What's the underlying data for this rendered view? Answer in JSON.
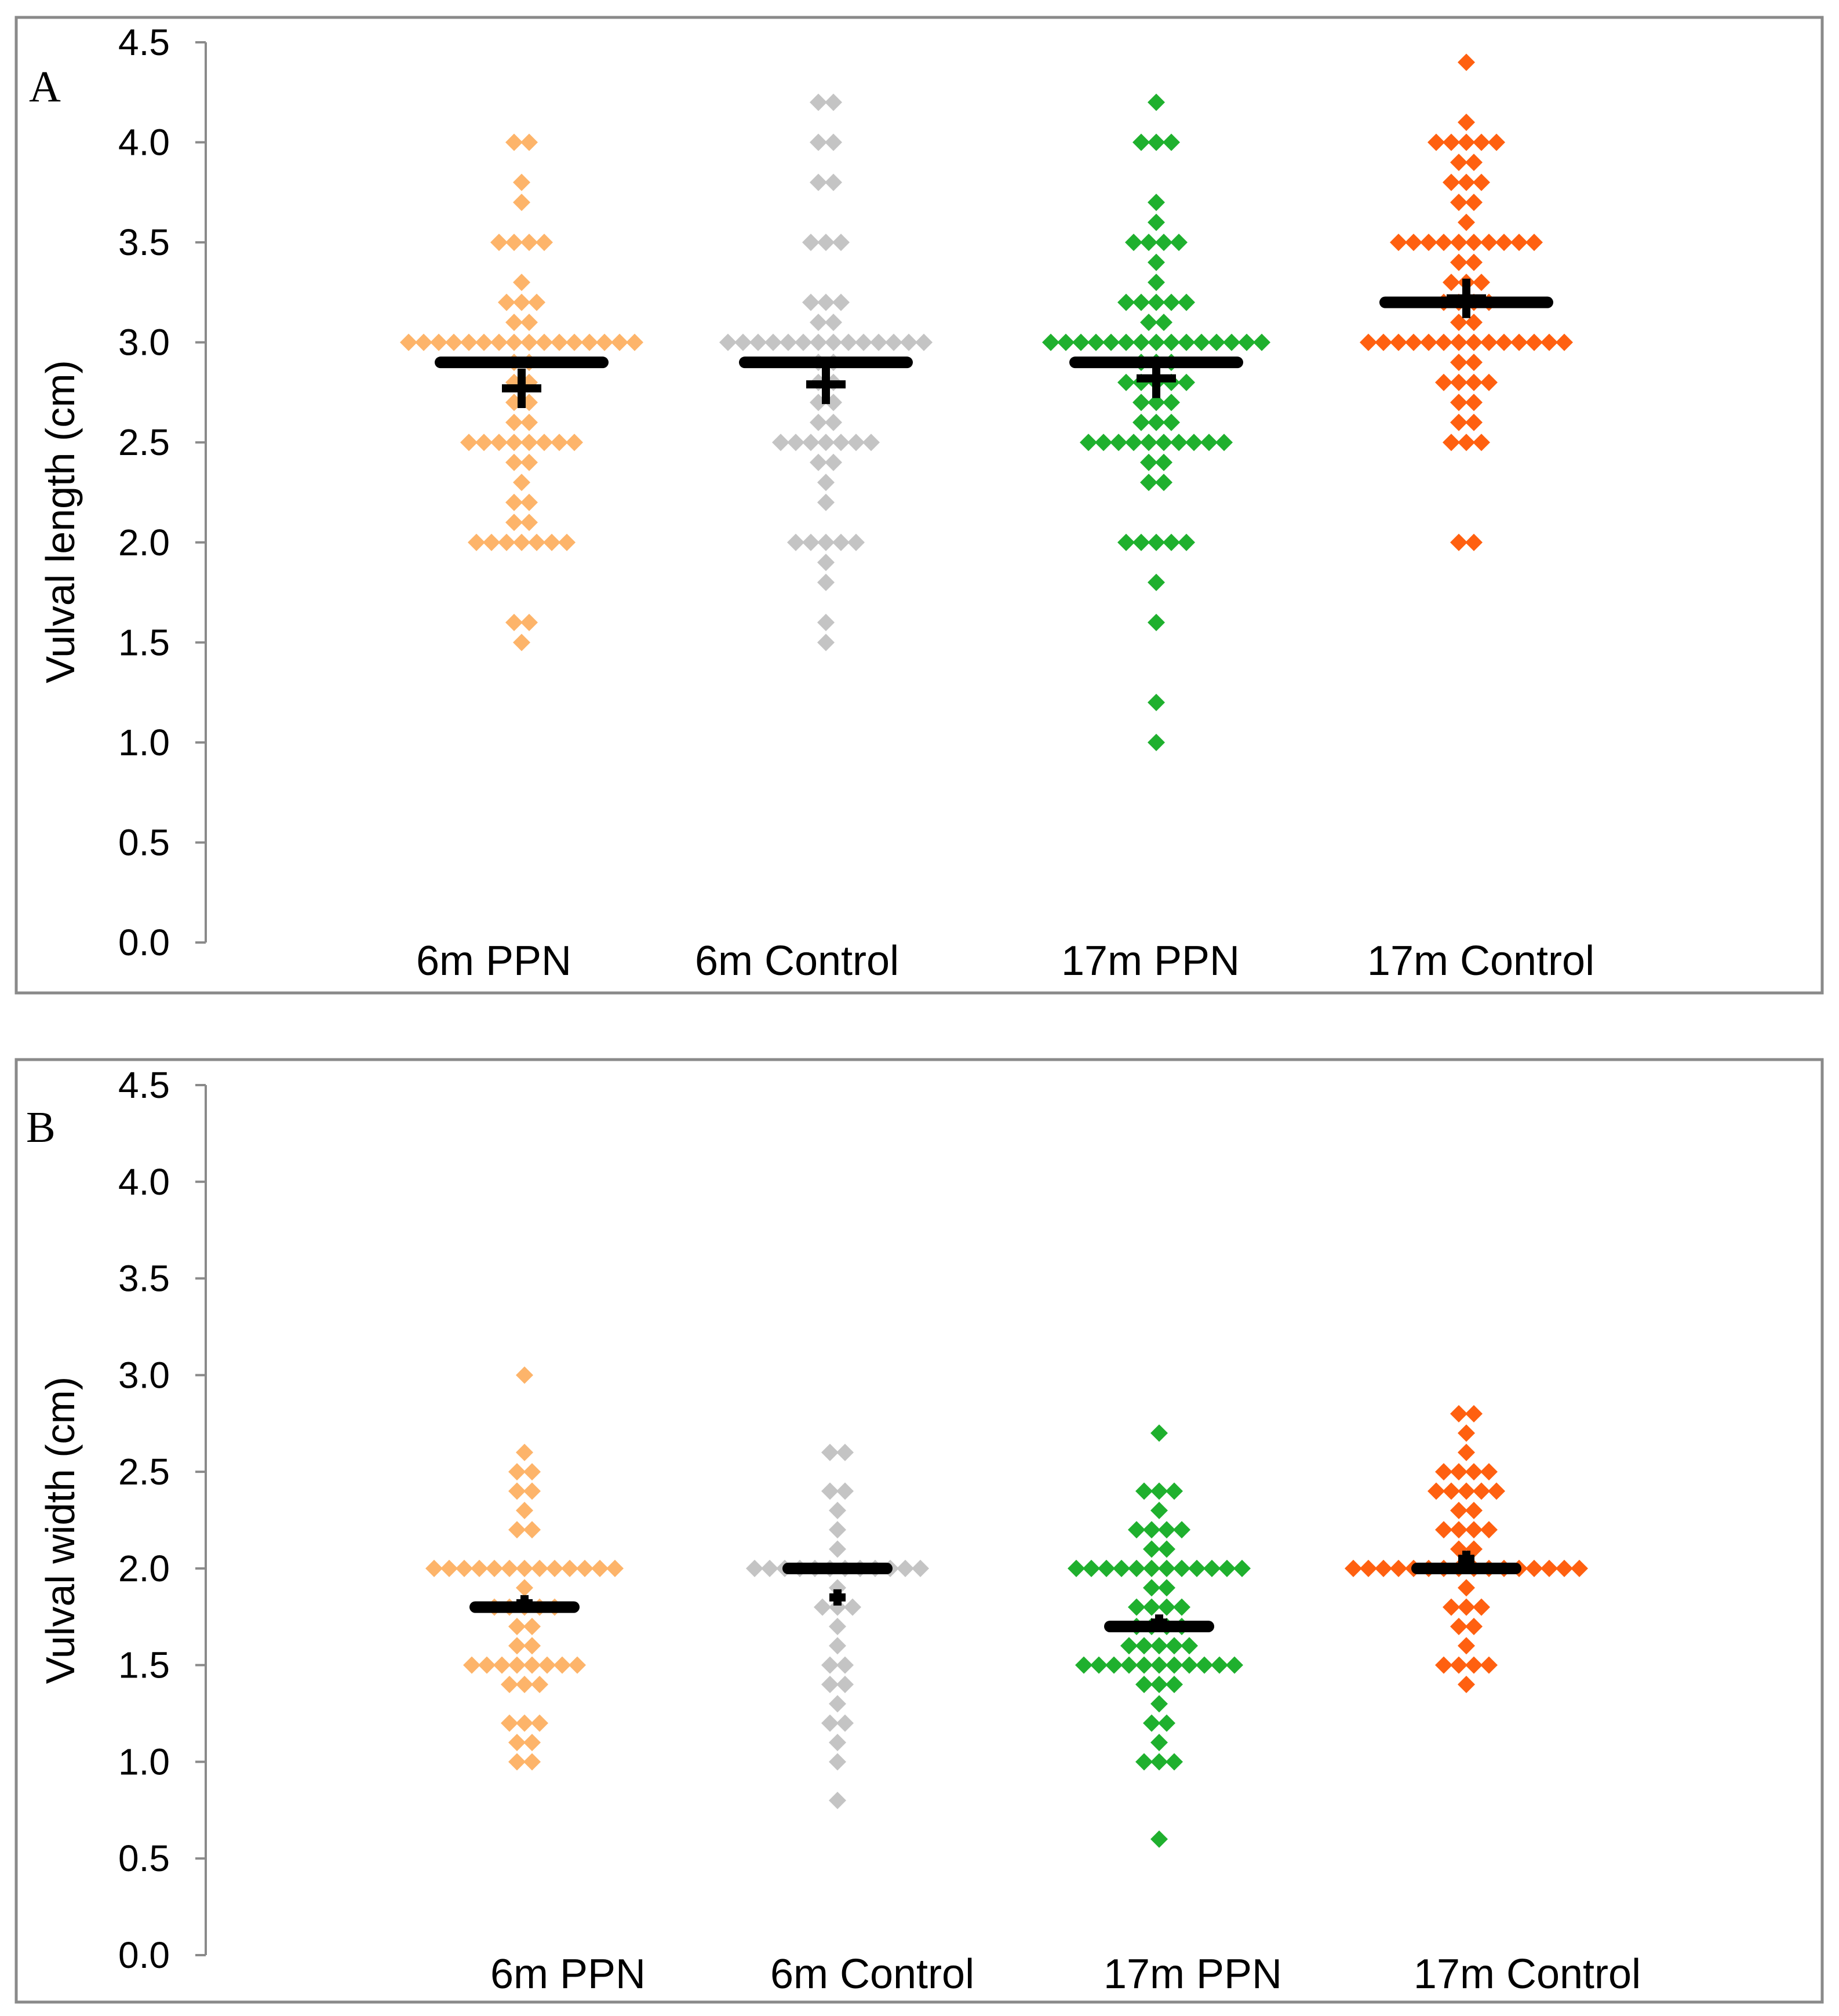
{
  "chart_data": [
    {
      "type": "scatter",
      "panel_label": "A",
      "ylabel": "Vulval length (cm)",
      "xlabel": "",
      "ylim": [
        0,
        4.5
      ],
      "y_ticks": [
        "0.0",
        "0.5",
        "1.0",
        "1.5",
        "2.0",
        "2.5",
        "3.0",
        "3.5",
        "4.0",
        "4.5"
      ],
      "categories": [
        "6m PPN",
        "6m Control",
        "17m PPN",
        "17m Control"
      ],
      "colors": [
        "#FDB46A",
        "#C4C4C4",
        "#1FB02E",
        "#FF6010"
      ],
      "series": [
        {
          "name": "6m PPN",
          "median": 2.9,
          "mean": 2.77,
          "values": [
            1.5,
            1.6,
            1.6,
            2.0,
            2.0,
            2.0,
            2.0,
            2.0,
            2.0,
            2.0,
            2.1,
            2.1,
            2.2,
            2.2,
            2.3,
            2.4,
            2.4,
            2.5,
            2.5,
            2.5,
            2.5,
            2.5,
            2.5,
            2.5,
            2.5,
            2.6,
            2.6,
            2.7,
            2.7,
            2.8,
            2.8,
            2.9,
            2.9,
            3.0,
            3.0,
            3.0,
            3.0,
            3.0,
            3.0,
            3.0,
            3.0,
            3.0,
            3.0,
            3.0,
            3.0,
            3.0,
            3.0,
            3.0,
            3.0,
            3.1,
            3.1,
            3.2,
            3.2,
            3.2,
            3.3,
            3.5,
            3.5,
            3.5,
            3.5,
            3.7,
            3.8,
            4.0,
            4.0
          ]
        },
        {
          "name": "6m Control",
          "median": 2.9,
          "mean": 2.79,
          "values": [
            1.5,
            1.6,
            1.8,
            1.9,
            2.0,
            2.0,
            2.0,
            2.0,
            2.0,
            2.2,
            2.3,
            2.4,
            2.4,
            2.5,
            2.5,
            2.5,
            2.5,
            2.5,
            2.5,
            2.5,
            2.6,
            2.6,
            2.7,
            2.7,
            2.8,
            2.8,
            2.9,
            2.9,
            3.0,
            3.0,
            3.0,
            3.0,
            3.0,
            3.0,
            3.0,
            3.0,
            3.0,
            3.0,
            3.0,
            3.0,
            3.0,
            3.0,
            3.1,
            3.1,
            3.2,
            3.2,
            3.2,
            3.5,
            3.5,
            3.5,
            3.8,
            3.8,
            4.0,
            4.0,
            4.2,
            4.2
          ]
        },
        {
          "name": "17m PPN",
          "median": 2.9,
          "mean": 2.82,
          "values": [
            1.0,
            1.2,
            1.6,
            1.8,
            2.0,
            2.0,
            2.0,
            2.0,
            2.0,
            2.3,
            2.3,
            2.4,
            2.4,
            2.5,
            2.5,
            2.5,
            2.5,
            2.5,
            2.5,
            2.5,
            2.5,
            2.5,
            2.5,
            2.6,
            2.6,
            2.6,
            2.7,
            2.7,
            2.7,
            2.8,
            2.8,
            2.8,
            2.8,
            2.8,
            2.9,
            2.9,
            2.9,
            3.0,
            3.0,
            3.0,
            3.0,
            3.0,
            3.0,
            3.0,
            3.0,
            3.0,
            3.0,
            3.0,
            3.0,
            3.0,
            3.0,
            3.0,
            3.1,
            3.1,
            3.2,
            3.2,
            3.2,
            3.2,
            3.2,
            3.3,
            3.4,
            3.5,
            3.5,
            3.5,
            3.5,
            3.6,
            3.7,
            4.0,
            4.0,
            4.0,
            4.2
          ]
        },
        {
          "name": "17m Control",
          "median": 3.2,
          "mean": 3.22,
          "values": [
            2.0,
            2.0,
            2.5,
            2.5,
            2.5,
            2.6,
            2.6,
            2.7,
            2.7,
            2.8,
            2.8,
            2.8,
            2.8,
            2.9,
            2.9,
            3.0,
            3.0,
            3.0,
            3.0,
            3.0,
            3.0,
            3.0,
            3.0,
            3.0,
            3.0,
            3.0,
            3.0,
            3.0,
            3.0,
            3.1,
            3.1,
            3.2,
            3.2,
            3.2,
            3.2,
            3.3,
            3.3,
            3.3,
            3.4,
            3.4,
            3.5,
            3.5,
            3.5,
            3.5,
            3.5,
            3.5,
            3.5,
            3.5,
            3.5,
            3.5,
            3.6,
            3.7,
            3.7,
            3.8,
            3.8,
            3.8,
            3.9,
            3.9,
            4.0,
            4.0,
            4.0,
            4.0,
            4.0,
            4.1,
            4.4
          ]
        }
      ]
    },
    {
      "type": "scatter",
      "panel_label": "B",
      "ylabel": "Vulval width (cm)",
      "xlabel": "",
      "ylim": [
        0,
        4.5
      ],
      "y_ticks": [
        "0.0",
        "0.5",
        "1.0",
        "1.5",
        "2.0",
        "2.5",
        "3.0",
        "3.5",
        "4.0",
        "4.5"
      ],
      "categories": [
        "6m PPN",
        "6m Control",
        "17m PPN",
        "17m Control"
      ],
      "colors": [
        "#FDB46A",
        "#C4C4C4",
        "#1FB02E",
        "#FF6010"
      ],
      "series": [
        {
          "name": "6m PPN",
          "median": 1.8,
          "mean": 1.82,
          "values": [
            1.0,
            1.0,
            1.1,
            1.1,
            1.2,
            1.2,
            1.2,
            1.4,
            1.4,
            1.4,
            1.5,
            1.5,
            1.5,
            1.5,
            1.5,
            1.5,
            1.5,
            1.5,
            1.6,
            1.6,
            1.7,
            1.7,
            1.8,
            1.8,
            1.8,
            1.8,
            1.8,
            1.9,
            2.0,
            2.0,
            2.0,
            2.0,
            2.0,
            2.0,
            2.0,
            2.0,
            2.0,
            2.0,
            2.0,
            2.0,
            2.0,
            2.2,
            2.2,
            2.3,
            2.4,
            2.4,
            2.5,
            2.5,
            2.6,
            3.0
          ]
        },
        {
          "name": "6m Control",
          "median": 2.0,
          "mean": 1.85,
          "values": [
            0.8,
            1.0,
            1.1,
            1.2,
            1.2,
            1.3,
            1.4,
            1.4,
            1.5,
            1.5,
            1.6,
            1.7,
            1.8,
            1.8,
            1.8,
            1.9,
            2.0,
            2.0,
            2.0,
            2.0,
            2.0,
            2.0,
            2.0,
            2.0,
            2.0,
            2.0,
            2.0,
            2.0,
            2.1,
            2.2,
            2.3,
            2.4,
            2.4,
            2.6,
            2.6
          ]
        },
        {
          "name": "17m PPN",
          "median": 1.7,
          "mean": 1.72,
          "values": [
            0.6,
            1.0,
            1.0,
            1.0,
            1.1,
            1.2,
            1.2,
            1.3,
            1.4,
            1.4,
            1.4,
            1.5,
            1.5,
            1.5,
            1.5,
            1.5,
            1.5,
            1.5,
            1.5,
            1.5,
            1.5,
            1.5,
            1.6,
            1.6,
            1.6,
            1.6,
            1.6,
            1.7,
            1.7,
            1.7,
            1.7,
            1.8,
            1.8,
            1.8,
            1.8,
            1.9,
            1.9,
            2.0,
            2.0,
            2.0,
            2.0,
            2.0,
            2.0,
            2.0,
            2.0,
            2.0,
            2.0,
            2.0,
            2.0,
            2.1,
            2.1,
            2.2,
            2.2,
            2.2,
            2.2,
            2.3,
            2.4,
            2.4,
            2.4,
            2.7
          ]
        },
        {
          "name": "17m Control",
          "median": 2.0,
          "mean": 2.05,
          "values": [
            1.4,
            1.5,
            1.5,
            1.5,
            1.5,
            1.6,
            1.7,
            1.7,
            1.8,
            1.8,
            1.8,
            1.9,
            2.0,
            2.0,
            2.0,
            2.0,
            2.0,
            2.0,
            2.0,
            2.0,
            2.0,
            2.0,
            2.0,
            2.0,
            2.0,
            2.0,
            2.0,
            2.0,
            2.1,
            2.1,
            2.2,
            2.2,
            2.2,
            2.2,
            2.3,
            2.3,
            2.4,
            2.4,
            2.4,
            2.4,
            2.4,
            2.5,
            2.5,
            2.5,
            2.5,
            2.6,
            2.7,
            2.8,
            2.8
          ]
        }
      ]
    }
  ]
}
